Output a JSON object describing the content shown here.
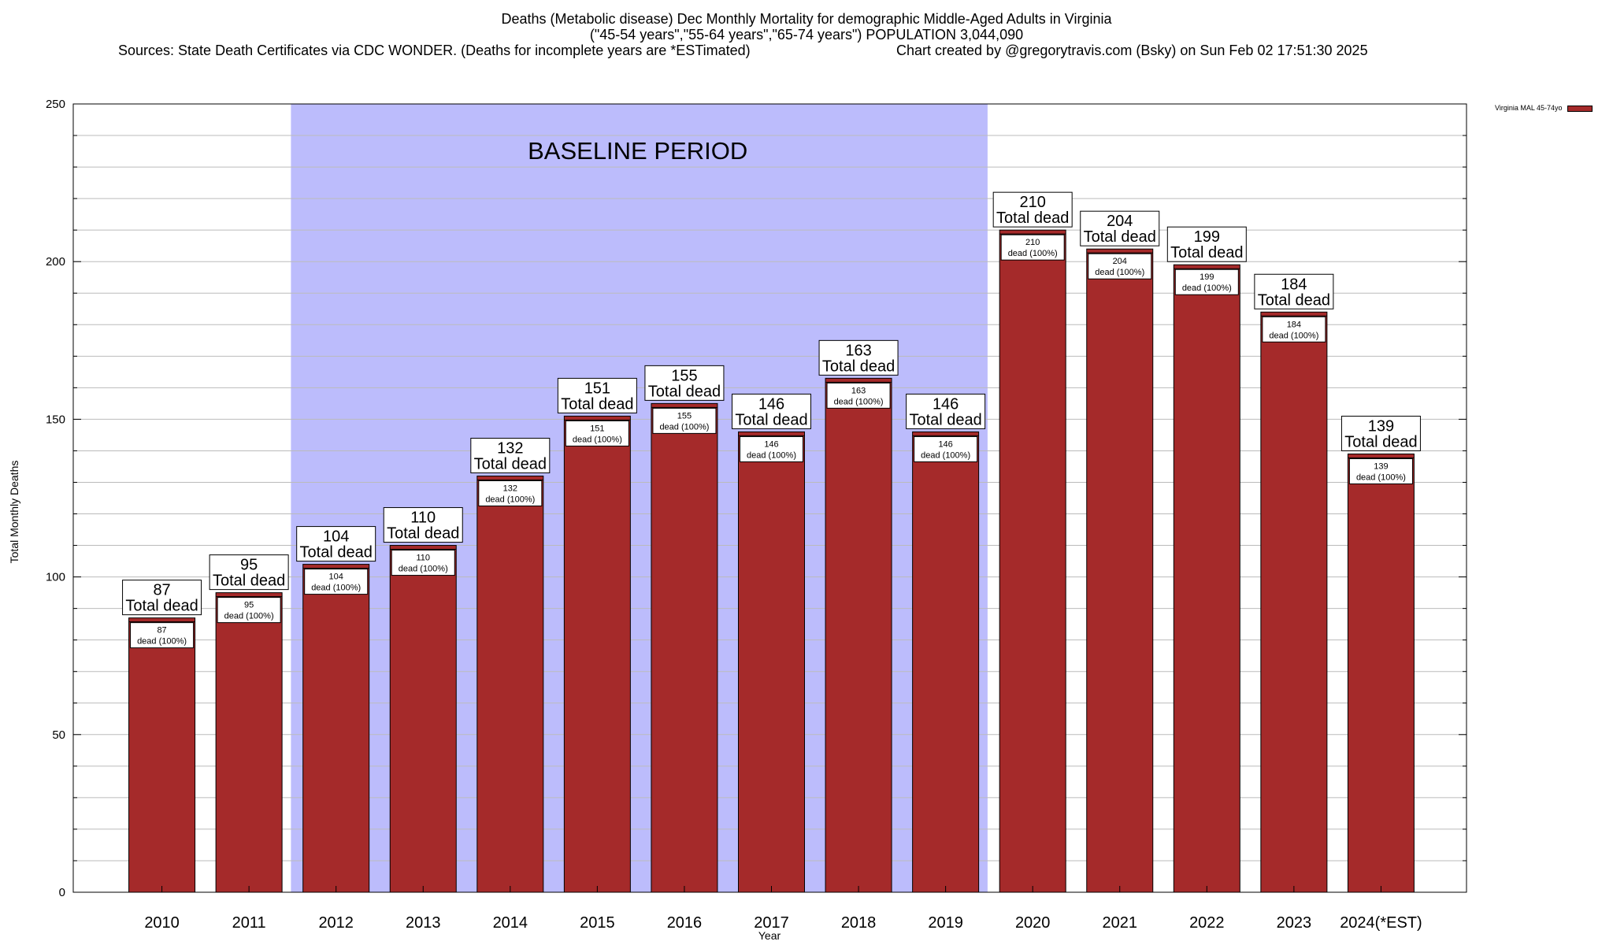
{
  "title": {
    "line1": "Deaths (Metabolic disease) Dec Monthly Mortality for demographic Middle-Aged Adults in Virginia",
    "line2": "(\"45-54 years\",\"55-64 years\",\"65-74 years\") POPULATION 3,044,090",
    "sources": "Sources: State Death Certificates via CDC WONDER. (Deaths for incomplete years are *ESTimated)",
    "credit": "Chart created by @gregorytravis.com (Bsky) on Sun Feb 02 17:51:30 2025"
  },
  "chart_data": {
    "type": "bar",
    "categories": [
      "2010",
      "2011",
      "2012",
      "2013",
      "2014",
      "2015",
      "2016",
      "2017",
      "2018",
      "2019",
      "2020",
      "2021",
      "2022",
      "2023",
      "2024(*EST)"
    ],
    "series": [
      {
        "name": "Virginia MAL 45-74yo",
        "values": [
          87,
          95,
          104,
          110,
          132,
          151,
          155,
          146,
          163,
          146,
          210,
          204,
          199,
          184,
          139
        ],
        "color": "#a52a2a"
      }
    ],
    "xlabel": "Year",
    "ylabel": "Total Monthly Deaths",
    "ylim": [
      0,
      250
    ],
    "yticks": [
      0,
      50,
      100,
      150,
      200,
      250
    ],
    "grid": true,
    "legend_position": "top-right",
    "baseline_region": {
      "label": "BASELINE PERIOD",
      "from": "2012",
      "to": "2019",
      "color": "#bcbcfc"
    },
    "total_label_suffix": "Total dead",
    "inner_label_suffix": "dead (100%)"
  }
}
